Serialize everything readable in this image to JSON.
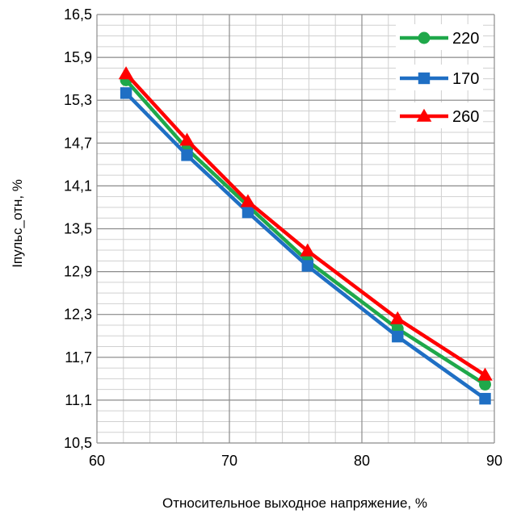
{
  "chart_data": {
    "type": "line",
    "xlabel": "Относительное выходное напряжение, %",
    "ylabel": "Iпульс_отн, %",
    "xlim": [
      60,
      90
    ],
    "ylim": [
      10.5,
      16.5
    ],
    "x_ticks": [
      "60",
      "70",
      "80",
      "90"
    ],
    "y_ticks": [
      "10,5",
      "11,1",
      "11,7",
      "12,3",
      "12,9",
      "13,5",
      "14,1",
      "14,7",
      "15,3",
      "15,9",
      "16,5"
    ],
    "grid": true,
    "legend_position": "top-right",
    "x": [
      62.2,
      66.8,
      71.4,
      75.9,
      82.7,
      89.3
    ],
    "series": [
      {
        "name": "220",
        "color": "#1fa84a",
        "marker": "circle",
        "values": [
          15.58,
          14.62,
          13.82,
          13.05,
          12.1,
          11.32
        ]
      },
      {
        "name": "170",
        "color": "#1f6fc4",
        "marker": "square",
        "values": [
          15.4,
          14.53,
          13.73,
          12.98,
          11.99,
          11.12
        ]
      },
      {
        "name": "260",
        "color": "#ff0000",
        "marker": "triangle",
        "values": [
          15.67,
          14.74,
          13.88,
          13.19,
          12.24,
          11.45
        ]
      }
    ]
  }
}
